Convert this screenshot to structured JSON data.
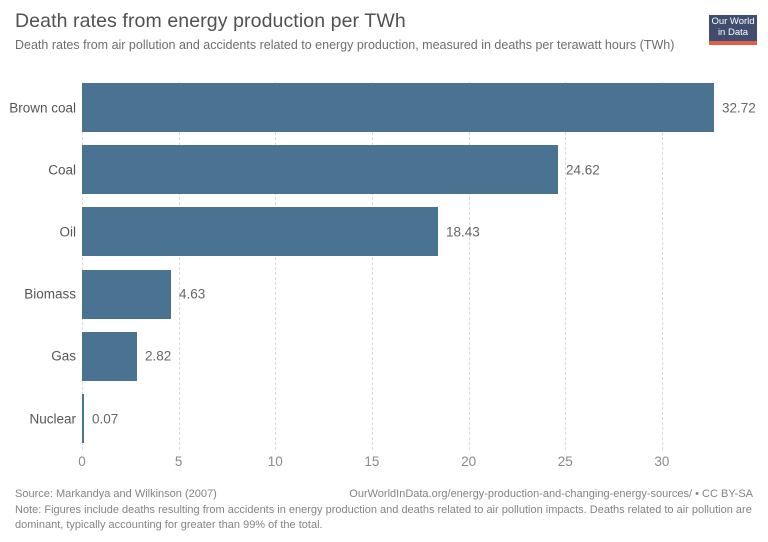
{
  "header": {
    "title": "Death rates from energy production per TWh",
    "subtitle": "Death rates from air pollution and accidents related to energy production, measured in deaths per terawatt hours (TWh)",
    "logo": {
      "line1": "Our World",
      "line2": "in Data"
    }
  },
  "chart_data": {
    "type": "bar",
    "orientation": "horizontal",
    "title": "Death rates from energy production per TWh",
    "categories": [
      "Brown coal",
      "Coal",
      "Oil",
      "Biomass",
      "Gas",
      "Nuclear"
    ],
    "values": [
      32.72,
      24.62,
      18.43,
      4.63,
      2.82,
      0.07
    ],
    "value_labels": [
      "32.72",
      "24.62",
      "18.43",
      "4.63",
      "2.82",
      "0.07"
    ],
    "xlabel": "",
    "ylabel": "",
    "xlim": [
      0,
      35.4
    ],
    "xticks": [
      0,
      5,
      10,
      15,
      20,
      25,
      30
    ],
    "grid": "vertical-dashed",
    "legend": "none"
  },
  "colors": {
    "bar": "#4A7291",
    "logo_bg": "#3F4E6E",
    "logo_accent": "#E0604A"
  },
  "footer": {
    "source": "Source: Markandya and Wilkinson (2007)",
    "link": "OurWorldInData.org/energy-production-and-changing-energy-sources/ • CC BY-SA",
    "note": "Note: Figures include deaths resulting from accidents in energy production and deaths related to air pollution impacts. Deaths related to air pollution are dominant, typically accounting for greater than 99% of the total."
  }
}
